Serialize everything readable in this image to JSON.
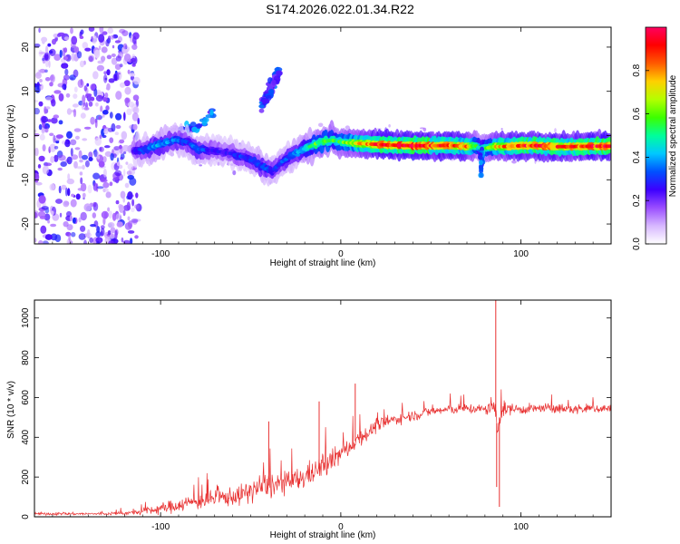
{
  "title": "S174.2026.022.01.34.R22",
  "chart_data": [
    {
      "type": "heatmap",
      "xlabel": "Height of straight line (km)",
      "ylabel": "Frequency (Hz)",
      "xlim": [
        -170,
        150
      ],
      "ylim": [
        -24.5,
        24.5
      ],
      "xticks": [
        -100,
        0,
        100
      ],
      "yticks": [
        -20,
        -10,
        0,
        10,
        20
      ],
      "colorbar": {
        "label": "Normalized spectral amplitude",
        "range": [
          0,
          1
        ],
        "ticks": [
          "0.0",
          "0.2",
          "0.4",
          "0.6",
          "0.8"
        ],
        "colors": [
          "#ffffff",
          "#d7b8ff",
          "#9a4dff",
          "#3c00ff",
          "#0050ff",
          "#00c8ff",
          "#00ff9a",
          "#3cff00",
          "#b4ff00",
          "#ffd000",
          "#ff5a00",
          "#ff0000",
          "#ff0060"
        ]
      },
      "ridge": {
        "x": [
          -115,
          -108,
          -100,
          -92,
          -85,
          -80,
          -70,
          -62,
          -57,
          -50,
          -42,
          -38,
          -34,
          -28,
          -20,
          -12,
          -5,
          0,
          10,
          20,
          30,
          40,
          50,
          60,
          70,
          75,
          78,
          85,
          90,
          100,
          110,
          120,
          130,
          140,
          150
        ],
        "f": [
          -3.5,
          -3.0,
          -2.0,
          -1.0,
          -1.5,
          -3.0,
          -3.5,
          -4.0,
          -4.5,
          -5.5,
          -7.5,
          -8.0,
          -6.5,
          -4.5,
          -3.0,
          -1.5,
          -1.0,
          -1.5,
          -1.8,
          -2.0,
          -2.2,
          -2.3,
          -2.3,
          -2.2,
          -2.5,
          -2.3,
          -3.0,
          -2.5,
          -2.5,
          -2.3,
          -2.3,
          -2.5,
          -2.5,
          -2.4,
          -2.4
        ],
        "amplitude": [
          0.25,
          0.35,
          0.4,
          0.35,
          0.3,
          0.35,
          0.25,
          0.25,
          0.3,
          0.3,
          0.35,
          0.3,
          0.3,
          0.35,
          0.45,
          0.6,
          0.55,
          0.55,
          0.75,
          0.85,
          0.9,
          0.95,
          0.9,
          0.85,
          0.8,
          0.55,
          0.45,
          0.7,
          0.8,
          0.85,
          0.9,
          0.85,
          0.85,
          0.9,
          0.9
        ]
      },
      "branches": [
        {
          "x": [
            -110,
            -100,
            -90,
            -80,
            -75,
            -70
          ],
          "f": [
            -4,
            -2,
            0,
            2,
            3.5,
            5
          ],
          "amplitude": 0.35
        },
        {
          "x": [
            -44,
            -40,
            -36,
            -34
          ],
          "f": [
            6,
            10,
            13,
            15
          ],
          "amplitude": 0.3
        }
      ],
      "noise_region": {
        "x": [
          -170,
          -112
        ],
        "f": [
          -24.5,
          24.5
        ],
        "amplitude_range": [
          0.05,
          0.3
        ]
      }
    },
    {
      "type": "line",
      "xlabel": "Height of straight line (km)",
      "ylabel": "SNR (10 * v/v)",
      "xlim": [
        -170,
        150
      ],
      "ylim": [
        0,
        1090
      ],
      "xticks": [
        -100,
        0,
        100
      ],
      "yticks": [
        0,
        200,
        400,
        600,
        800,
        1000
      ],
      "color": "#e83030",
      "envelope": {
        "x": [
          -170,
          -130,
          -115,
          -100,
          -85,
          -70,
          -55,
          -45,
          -38,
          -30,
          -22,
          -15,
          -10,
          -5,
          0,
          5,
          10,
          15,
          20,
          30,
          40,
          50,
          60,
          70,
          80,
          84,
          85,
          86,
          87,
          88,
          90,
          95,
          100,
          110,
          120,
          130,
          140,
          150
        ],
        "mean": [
          15,
          15,
          20,
          40,
          70,
          90,
          110,
          150,
          160,
          170,
          190,
          230,
          250,
          280,
          320,
          350,
          400,
          420,
          460,
          490,
          510,
          530,
          540,
          545,
          540,
          540,
          560,
          520,
          420,
          500,
          540,
          545,
          540,
          545,
          545,
          540,
          545,
          545
        ],
        "spread": [
          12,
          12,
          20,
          50,
          70,
          80,
          90,
          120,
          120,
          100,
          110,
          110,
          110,
          100,
          90,
          80,
          80,
          70,
          60,
          50,
          50,
          45,
          45,
          45,
          50,
          60,
          80,
          90,
          100,
          90,
          70,
          50,
          45,
          45,
          45,
          45,
          45,
          45
        ]
      },
      "spikes": [
        {
          "x": -40,
          "y": 480
        },
        {
          "x": -12,
          "y": 580
        },
        {
          "x": 8,
          "y": 670
        },
        {
          "x": 86,
          "y": 1090
        },
        {
          "x": 88,
          "y": 50
        },
        {
          "x": 86.5,
          "y": 150
        }
      ]
    }
  ]
}
